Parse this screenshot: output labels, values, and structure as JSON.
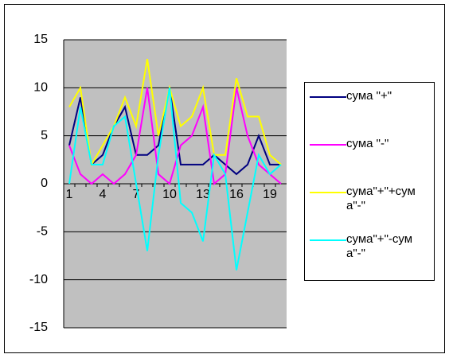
{
  "chart_data": {
    "type": "line",
    "categories": [
      1,
      null,
      null,
      4,
      null,
      null,
      7,
      null,
      null,
      10,
      null,
      null,
      13,
      null,
      null,
      16,
      null,
      null,
      19,
      null
    ],
    "series": [
      {
        "name": "сума \"+\"",
        "color": "#000080",
        "values": [
          4,
          9,
          2,
          3,
          6,
          8,
          3,
          3,
          4,
          10,
          2,
          2,
          2,
          3,
          2,
          1,
          2,
          5,
          2,
          2
        ]
      },
      {
        "name": "сума \"-\"",
        "color": "#ff00ff",
        "values": [
          4,
          1,
          0,
          1,
          0,
          1,
          3,
          10,
          1,
          0,
          4,
          5,
          8,
          0,
          1,
          10,
          5,
          2,
          1,
          0
        ]
      },
      {
        "name": "сума\"+\"+сума\"-\"",
        "color": "#ffff00",
        "values": [
          8,
          10,
          2,
          4,
          6,
          9,
          6,
          13,
          5,
          10,
          6,
          7,
          10,
          3,
          3,
          11,
          7,
          7,
          3,
          2
        ]
      },
      {
        "name": "сума\"+\"-сума\"-\"",
        "color": "#00ffff",
        "values": [
          0,
          8,
          2,
          2,
          6,
          7,
          0,
          -7,
          3,
          10,
          -2,
          -3,
          -6,
          3,
          1,
          -9,
          -3,
          3,
          1,
          2
        ]
      }
    ],
    "ylim": [
      -15,
      15
    ],
    "yticks": [
      -15,
      -10,
      -5,
      0,
      5,
      10,
      15
    ],
    "grid": true,
    "plot_background": "#c0c0c0"
  }
}
